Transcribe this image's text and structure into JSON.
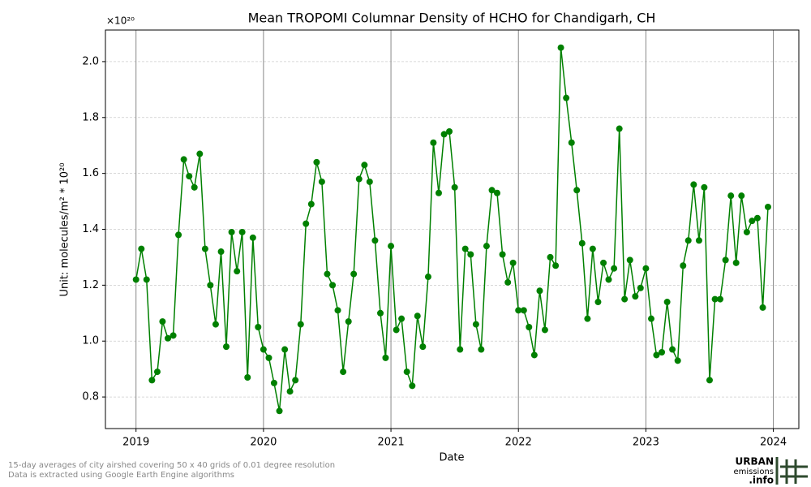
{
  "chart_data": {
    "type": "line",
    "title": "Mean TROPOMI Columnar Density of HCHO for Chandigarh, CH",
    "offset_label": "×10²⁰",
    "y_label": "Unit: molecules/m² * 10²⁰",
    "x_label": "Date",
    "footnotes": [
      "15-day averages of city airshed covering 50 x 40 grids of 0.01 degree resolution",
      "Data is extracted using Google Earth Engine algorithms"
    ],
    "logo": [
      "URBAN",
      "emissions",
      ".info"
    ],
    "grid": true,
    "x": [
      2019,
      2019.042,
      2019.083,
      2019.125,
      2019.167,
      2019.208,
      2019.25,
      2019.292,
      2019.333,
      2019.375,
      2019.417,
      2019.458,
      2019.5,
      2019.542,
      2019.583,
      2019.625,
      2019.667,
      2019.708,
      2019.75,
      2019.792,
      2019.833,
      2019.875,
      2019.917,
      2019.958,
      2020,
      2020.042,
      2020.083,
      2020.125,
      2020.167,
      2020.208,
      2020.25,
      2020.292,
      2020.333,
      2020.375,
      2020.417,
      2020.458,
      2020.5,
      2020.542,
      2020.583,
      2020.625,
      2020.667,
      2020.708,
      2020.75,
      2020.792,
      2020.833,
      2020.875,
      2020.917,
      2020.958,
      2021,
      2021.042,
      2021.083,
      2021.125,
      2021.167,
      2021.208,
      2021.25,
      2021.292,
      2021.333,
      2021.375,
      2021.417,
      2021.458,
      2021.5,
      2021.542,
      2021.583,
      2021.625,
      2021.667,
      2021.708,
      2021.75,
      2021.792,
      2021.833,
      2021.875,
      2021.917,
      2021.958,
      2022,
      2022.042,
      2022.083,
      2022.125,
      2022.167,
      2022.208,
      2022.25,
      2022.292,
      2022.333,
      2022.375,
      2022.417,
      2022.458,
      2022.5,
      2022.542,
      2022.583,
      2022.625,
      2022.667,
      2022.708,
      2022.75,
      2022.792,
      2022.833,
      2022.875,
      2022.917,
      2022.958,
      2023,
      2023.042,
      2023.083,
      2023.125,
      2023.167,
      2023.208,
      2023.25,
      2023.292,
      2023.333,
      2023.375,
      2023.417,
      2023.458,
      2023.5,
      2023.542,
      2023.583,
      2023.625,
      2023.667,
      2023.708,
      2023.75,
      2023.792,
      2023.833,
      2023.875,
      2023.917,
      2023.958
    ],
    "series": [
      {
        "color": "#008000",
        "values": [
          1.22,
          1.33,
          1.22,
          0.86,
          0.89,
          1.07,
          1.01,
          1.02,
          1.38,
          1.65,
          1.59,
          1.55,
          1.67,
          1.33,
          1.2,
          1.06,
          1.32,
          0.98,
          1.39,
          1.25,
          1.39,
          0.87,
          1.37,
          1.05,
          0.97,
          0.94,
          0.85,
          0.75,
          0.97,
          0.82,
          0.86,
          1.06,
          1.42,
          1.49,
          1.64,
          1.57,
          1.24,
          1.2,
          1.11,
          0.89,
          1.07,
          1.24,
          1.58,
          1.63,
          1.57,
          1.36,
          1.1,
          0.94,
          1.34,
          1.04,
          1.08,
          0.89,
          0.84,
          1.09,
          0.98,
          1.23,
          1.71,
          1.53,
          1.74,
          1.75,
          1.55,
          0.97,
          1.33,
          1.31,
          1.06,
          0.97,
          1.34,
          1.54,
          1.53,
          1.31,
          1.21,
          1.28,
          1.11,
          1.11,
          1.05,
          0.95,
          1.18,
          1.04,
          1.3,
          1.27,
          2.05,
          1.87,
          1.71,
          1.54,
          1.35,
          1.08,
          1.33,
          1.14,
          1.28,
          1.22,
          1.26,
          1.76,
          1.15,
          1.29,
          1.16,
          1.19,
          1.26,
          1.08,
          0.95,
          0.96,
          1.14,
          0.97,
          0.93,
          1.27,
          1.36,
          1.56,
          1.36,
          1.55,
          0.86,
          1.15,
          1.15,
          1.29,
          1.52,
          1.28,
          1.52,
          1.39,
          1.43,
          1.44,
          1.12,
          1.48
        ]
      }
    ],
    "xlim": [
      2018.76,
      2024.2
    ],
    "xticks": [
      2019,
      2020,
      2021,
      2022,
      2023,
      2024
    ],
    "ylim": [
      0.687,
      2.113
    ],
    "yticks": [
      {
        "value": 0.8,
        "label": "0.8"
      },
      {
        "value": 1.0,
        "label": "1.0"
      },
      {
        "value": 1.2,
        "label": "1.2"
      },
      {
        "value": 1.4,
        "label": "1.4"
      },
      {
        "value": 1.6,
        "label": "1.6"
      },
      {
        "value": 1.8,
        "label": "1.8"
      },
      {
        "value": 2.0,
        "label": "2.0"
      }
    ]
  }
}
